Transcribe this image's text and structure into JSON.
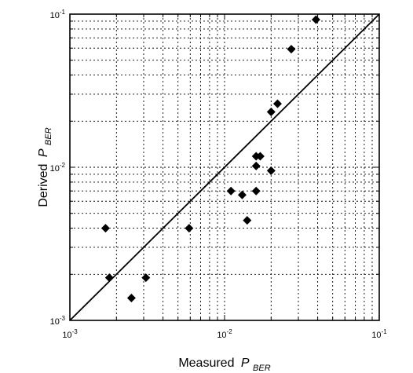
{
  "chart_data": {
    "type": "scatter",
    "title": "",
    "xlabel_main": "Measured",
    "xlabel_var": "P",
    "xlabel_sub": "BER",
    "ylabel_main": "Derived",
    "ylabel_var": "P",
    "ylabel_sub": "BER",
    "xscale": "log",
    "yscale": "log",
    "xlim": [
      0.001,
      0.1
    ],
    "ylim": [
      0.001,
      0.1
    ],
    "grid": true,
    "xticks": [
      {
        "value": 0.001,
        "base": "10",
        "exp": "-3"
      },
      {
        "value": 0.01,
        "base": "10",
        "exp": "-2"
      },
      {
        "value": 0.1,
        "base": "10",
        "exp": "-1"
      }
    ],
    "yticks": [
      {
        "value": 0.001,
        "base": "10",
        "exp": "-3"
      },
      {
        "value": 0.01,
        "base": "10",
        "exp": "-2"
      },
      {
        "value": 0.1,
        "base": "10",
        "exp": "-1"
      }
    ],
    "reference_line": {
      "from": [
        0.001,
        0.001
      ],
      "to": [
        0.1,
        0.1
      ]
    },
    "marker": "diamond",
    "points": [
      {
        "x": 0.0017,
        "y": 0.004
      },
      {
        "x": 0.0018,
        "y": 0.0019
      },
      {
        "x": 0.0025,
        "y": 0.0014
      },
      {
        "x": 0.0031,
        "y": 0.0019
      },
      {
        "x": 0.0059,
        "y": 0.004
      },
      {
        "x": 0.011,
        "y": 0.007
      },
      {
        "x": 0.013,
        "y": 0.0066
      },
      {
        "x": 0.014,
        "y": 0.0045
      },
      {
        "x": 0.016,
        "y": 0.007
      },
      {
        "x": 0.016,
        "y": 0.0102
      },
      {
        "x": 0.016,
        "y": 0.0118
      },
      {
        "x": 0.017,
        "y": 0.0118
      },
      {
        "x": 0.02,
        "y": 0.0095
      },
      {
        "x": 0.02,
        "y": 0.023
      },
      {
        "x": 0.022,
        "y": 0.026
      },
      {
        "x": 0.027,
        "y": 0.059
      },
      {
        "x": 0.039,
        "y": 0.092
      }
    ]
  }
}
